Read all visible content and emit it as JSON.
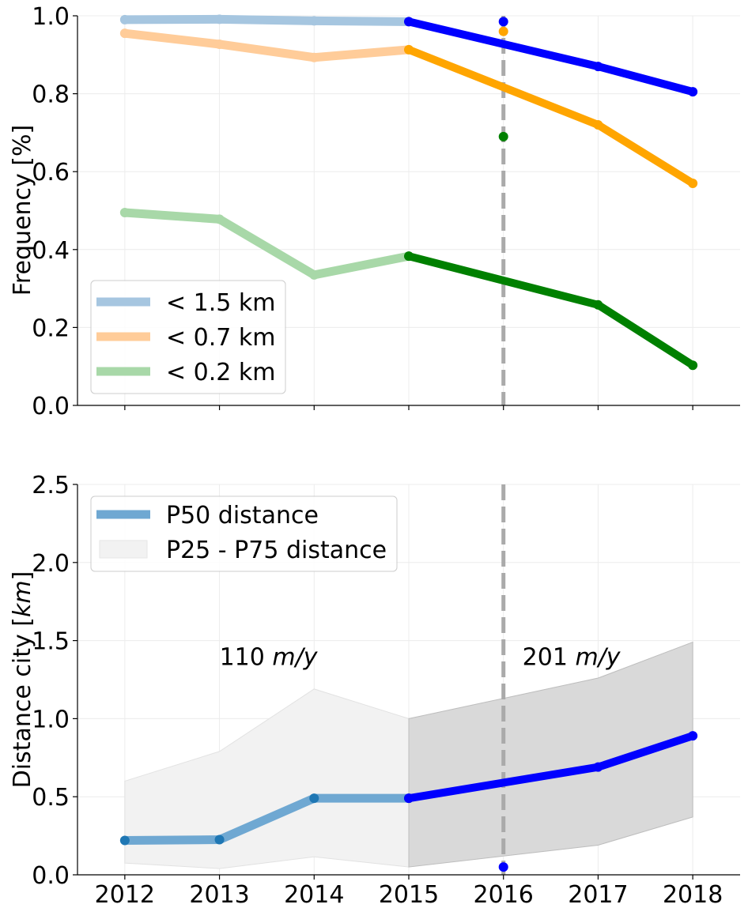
{
  "chart_data": [
    {
      "type": "line",
      "title": "",
      "xlabel": "",
      "ylabel": "Frequency [%]",
      "xlim": [
        2011.5,
        2018.5
      ],
      "ylim": [
        0.0,
        1.0
      ],
      "x_ticks": [
        2012,
        2013,
        2014,
        2015,
        2016,
        2017,
        2018
      ],
      "x_tick_labels_visible": false,
      "y_ticks": [
        0.0,
        0.2,
        0.4,
        0.6,
        0.8,
        1.0
      ],
      "y_tick_labels": [
        "0.0",
        "0.2",
        "0.4",
        "0.6",
        "0.8",
        "1.0"
      ],
      "grid": true,
      "legend_position": "lower-left",
      "vline_x": 2016,
      "series": [
        {
          "name": "< 1.5 km",
          "faded_color": "#a6c6e0",
          "bold_color": "#0000ff",
          "faded": {
            "x": [
              2012,
              2013,
              2014,
              2015
            ],
            "y": [
              0.99,
              0.991,
              0.987,
              0.985
            ]
          },
          "bold": {
            "x": [
              2015,
              2017,
              2018
            ],
            "y": [
              0.985,
              0.87,
              0.805
            ]
          },
          "point_2016": 0.985
        },
        {
          "name": "< 0.7 km",
          "faded_color": "#ffcc99",
          "bold_color": "#ffa500",
          "faded": {
            "x": [
              2012,
              2013,
              2014,
              2015
            ],
            "y": [
              0.955,
              0.927,
              0.893,
              0.913
            ]
          },
          "bold": {
            "x": [
              2015,
              2017,
              2018
            ],
            "y": [
              0.913,
              0.72,
              0.57
            ]
          },
          "point_2016": 0.96
        },
        {
          "name": "< 0.2 km",
          "faded_color": "#a8d8a8",
          "bold_color": "#008000",
          "faded": {
            "x": [
              2012,
              2013,
              2014,
              2015
            ],
            "y": [
              0.495,
              0.478,
              0.335,
              0.383
            ]
          },
          "bold": {
            "x": [
              2015,
              2017,
              2018
            ],
            "y": [
              0.383,
              0.258,
              0.103
            ]
          },
          "point_2016": 0.69
        }
      ]
    },
    {
      "type": "line",
      "title": "",
      "xlabel": "",
      "ylabel_prefix": "Distance city [",
      "ylabel_unit": "km",
      "ylabel_suffix": "]",
      "xlim": [
        2011.5,
        2018.5
      ],
      "ylim": [
        0.0,
        2.5
      ],
      "x_ticks": [
        2012,
        2013,
        2014,
        2015,
        2016,
        2017,
        2018
      ],
      "x_tick_labels": [
        "2012",
        "2013",
        "2014",
        "2015",
        "2016",
        "2017",
        "2018"
      ],
      "y_ticks": [
        0.0,
        0.5,
        1.0,
        1.5,
        2.0,
        2.5
      ],
      "y_tick_labels": [
        "0.0",
        "0.5",
        "1.0",
        "1.5",
        "2.0",
        "2.5"
      ],
      "grid": true,
      "legend_position": "top-left",
      "vline_x": 2016,
      "median": {
        "name": "P50 distance",
        "faded_color": "#6fa8d2",
        "faded_marker_color": "#1f77b4",
        "bold_color": "#0000ff",
        "faded": {
          "x": [
            2012,
            2013,
            2014,
            2015
          ],
          "y": [
            0.22,
            0.225,
            0.49,
            0.49
          ]
        },
        "bold": {
          "x": [
            2015,
            2017,
            2018
          ],
          "y": [
            0.49,
            0.69,
            0.89
          ]
        },
        "point_2016": 0.05
      },
      "band": {
        "name": "P25 - P75 distance",
        "early": {
          "x": [
            2012,
            2013,
            2014,
            2015
          ],
          "low": [
            0.075,
            0.04,
            0.115,
            0.05
          ],
          "high": [
            0.6,
            0.79,
            1.19,
            1.0
          ]
        },
        "late": {
          "x": [
            2015,
            2016,
            2017,
            2018
          ],
          "low": [
            0.05,
            0.12,
            0.19,
            0.37
          ],
          "high": [
            1.0,
            1.13,
            1.26,
            1.49
          ]
        }
      },
      "annotations": [
        {
          "num": "110",
          "unit": "m/y",
          "x": 2013.0,
          "y": 1.4
        },
        {
          "num": "201",
          "unit": "m/y",
          "x": 2016.2,
          "y": 1.4
        }
      ]
    }
  ]
}
